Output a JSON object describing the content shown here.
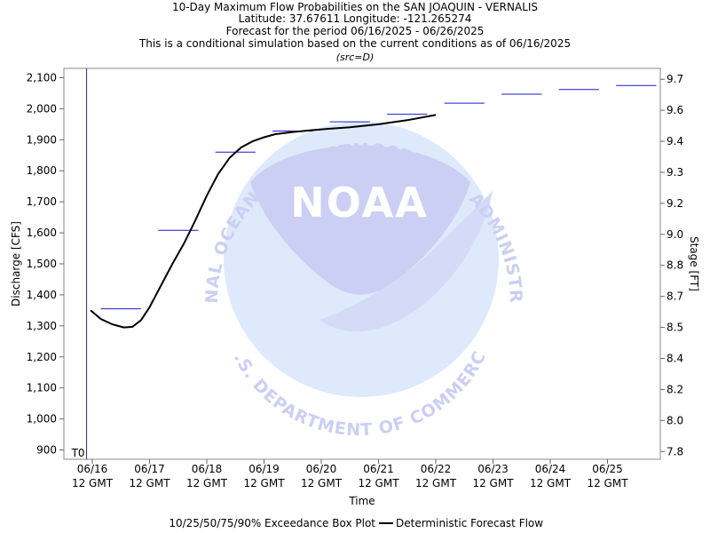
{
  "header": {
    "title": "10-Day Maximum Flow Probabilities on the SAN JOAQUIN - VERNALIS",
    "location": "Latitude: 37.67611 Longitude: -121.265274",
    "period": "Forecast for the period 06/16/2025 - 06/26/2025",
    "note": "This is a conditional simulation based on the current conditions as of 06/16/2025",
    "source": "(src=D)"
  },
  "watermark": {
    "logo_text": "NOAA",
    "ring_top": "NATIONAL OCEANIC AND ATMOSPHERIC ADMINISTRATION",
    "ring_bottom": "U.S. DEPARTMENT OF COMMERCE"
  },
  "legend": {
    "box_plot": "10/25/50/75/90% Exceedance Box Plot",
    "deterministic": "Deterministic Forecast Flow"
  },
  "colors": {
    "box_line": "#1a1acc",
    "det_line": "#000000",
    "t0_line": "#2a2a99",
    "watermark": "#c9cdf3"
  },
  "chart_data": {
    "type": "line",
    "xlabel": "Time",
    "ylabel": "Discharge [CFS]",
    "y2label": "Stage [FT]",
    "ylim": [
      870,
      2130
    ],
    "x_ticks": [
      {
        "top": "06/16",
        "bottom": "12 GMT",
        "day": 0
      },
      {
        "top": "06/17",
        "bottom": "12 GMT",
        "day": 1
      },
      {
        "top": "06/18",
        "bottom": "12 GMT",
        "day": 2
      },
      {
        "top": "06/19",
        "bottom": "12 GMT",
        "day": 3
      },
      {
        "top": "06/20",
        "bottom": "12 GMT",
        "day": 4
      },
      {
        "top": "06/21",
        "bottom": "12 GMT",
        "day": 5
      },
      {
        "top": "06/22",
        "bottom": "12 GMT",
        "day": 6
      },
      {
        "top": "06/23",
        "bottom": "12 GMT",
        "day": 7
      },
      {
        "top": "06/24",
        "bottom": "12 GMT",
        "day": 8
      },
      {
        "top": "06/25",
        "bottom": "12 GMT",
        "day": 9
      }
    ],
    "y_ticks": [
      900,
      1000,
      1100,
      1200,
      1300,
      1400,
      1500,
      1600,
      1700,
      1800,
      1900,
      2000,
      2100
    ],
    "y_tick_labels": [
      "900",
      "1,000",
      "1,100",
      "1,200",
      "1,300",
      "1,400",
      "1,500",
      "1,600",
      "1,700",
      "1,800",
      "1,900",
      "2,000",
      "2,100"
    ],
    "y2_ticks": [
      {
        "label": "7.8",
        "flow": 895
      },
      {
        "label": "8.0",
        "flow": 995
      },
      {
        "label": "8.2",
        "flow": 1095
      },
      {
        "label": "8.4",
        "flow": 1195
      },
      {
        "label": "8.5",
        "flow": 1295
      },
      {
        "label": "8.7",
        "flow": 1395
      },
      {
        "label": "8.8",
        "flow": 1495
      },
      {
        "label": "9.0",
        "flow": 1595
      },
      {
        "label": "9.2",
        "flow": 1695
      },
      {
        "label": "9.3",
        "flow": 1795
      },
      {
        "label": "9.4",
        "flow": 1895
      },
      {
        "label": "9.6",
        "flow": 1995
      },
      {
        "label": "9.7",
        "flow": 2095
      }
    ],
    "t0": {
      "label": "T0",
      "day": -0.1
    },
    "exceedance_levels": [
      {
        "day_start": 0.15,
        "day_end": 0.85,
        "value": 1355
      },
      {
        "day_start": 1.15,
        "day_end": 1.85,
        "value": 1608
      },
      {
        "day_start": 2.15,
        "day_end": 2.85,
        "value": 1860
      },
      {
        "day_start": 3.15,
        "day_end": 3.85,
        "value": 1928
      },
      {
        "day_start": 4.15,
        "day_end": 4.85,
        "value": 1958
      },
      {
        "day_start": 5.15,
        "day_end": 5.85,
        "value": 1982
      },
      {
        "day_start": 6.15,
        "day_end": 6.85,
        "value": 2018
      },
      {
        "day_start": 7.15,
        "day_end": 7.85,
        "value": 2047
      },
      {
        "day_start": 8.15,
        "day_end": 8.85,
        "value": 2062
      },
      {
        "day_start": 9.15,
        "day_end": 9.85,
        "value": 2075
      }
    ],
    "deterministic": {
      "day": [
        -0.03,
        0.15,
        0.35,
        0.55,
        0.7,
        0.85,
        1.0,
        1.2,
        1.4,
        1.6,
        1.8,
        2.0,
        2.2,
        2.4,
        2.6,
        2.8,
        3.0,
        3.2,
        3.5,
        3.8,
        4.1,
        4.5,
        5.0,
        5.5,
        6.0
      ],
      "value": [
        1350,
        1322,
        1305,
        1295,
        1297,
        1318,
        1360,
        1430,
        1500,
        1565,
        1640,
        1720,
        1790,
        1842,
        1875,
        1895,
        1908,
        1918,
        1925,
        1930,
        1935,
        1940,
        1950,
        1963,
        1980
      ]
    }
  }
}
